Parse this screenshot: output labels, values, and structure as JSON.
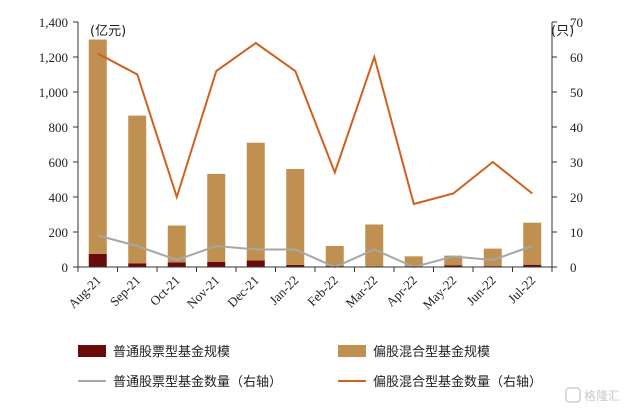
{
  "chart_data": {
    "type": "bar",
    "categories": [
      "Aug-21",
      "Sep-21",
      "Oct-21",
      "Nov-21",
      "Dec-21",
      "Jan-22",
      "Feb-22",
      "Mar-22",
      "Apr-22",
      "May-22",
      "Jun-22",
      "Jul-22"
    ],
    "left_unit": "(亿元)",
    "right_unit": "(只)",
    "ylim": [
      0,
      1400
    ],
    "y2lim": [
      0,
      70
    ],
    "y_ticks": [
      0,
      200,
      400,
      600,
      800,
      1000,
      1200,
      1400
    ],
    "y2_ticks": [
      0,
      10,
      20,
      30,
      40,
      50,
      60,
      70
    ],
    "y_tick_labels": [
      "0",
      "200",
      "400",
      "600",
      "800",
      "1,000",
      "1,200",
      "1,400"
    ],
    "y2_tick_labels": [
      "0",
      "10",
      "20",
      "30",
      "40",
      "50",
      "60",
      "70"
    ],
    "series": [
      {
        "name": "普通股票型基金规模",
        "type": "bar",
        "axis": "left",
        "color": "#6b0a0a",
        "values": [
          75,
          20,
          27,
          30,
          38,
          12,
          5,
          3,
          4,
          10,
          5,
          13
        ]
      },
      {
        "name": "偏股混合型基金规模",
        "type": "bar",
        "axis": "left",
        "color": "#c09050",
        "values": [
          1225,
          845,
          210,
          502,
          672,
          548,
          115,
          240,
          57,
          55,
          100,
          240
        ]
      },
      {
        "name": "普通股票型基金数量（右轴）",
        "type": "line",
        "axis": "right",
        "color": "#a6a6a6",
        "values": [
          9,
          6,
          2,
          6,
          5,
          5,
          0,
          5,
          0,
          3,
          2,
          6
        ]
      },
      {
        "name": "偏股混合型基金数量（右轴）",
        "type": "line",
        "axis": "right",
        "color": "#d06020",
        "values": [
          61,
          55,
          20,
          56,
          64,
          56,
          27,
          60,
          18,
          21,
          30,
          21
        ]
      }
    ],
    "grid": false,
    "legend_position": "bottom"
  },
  "watermark": "格隆汇"
}
